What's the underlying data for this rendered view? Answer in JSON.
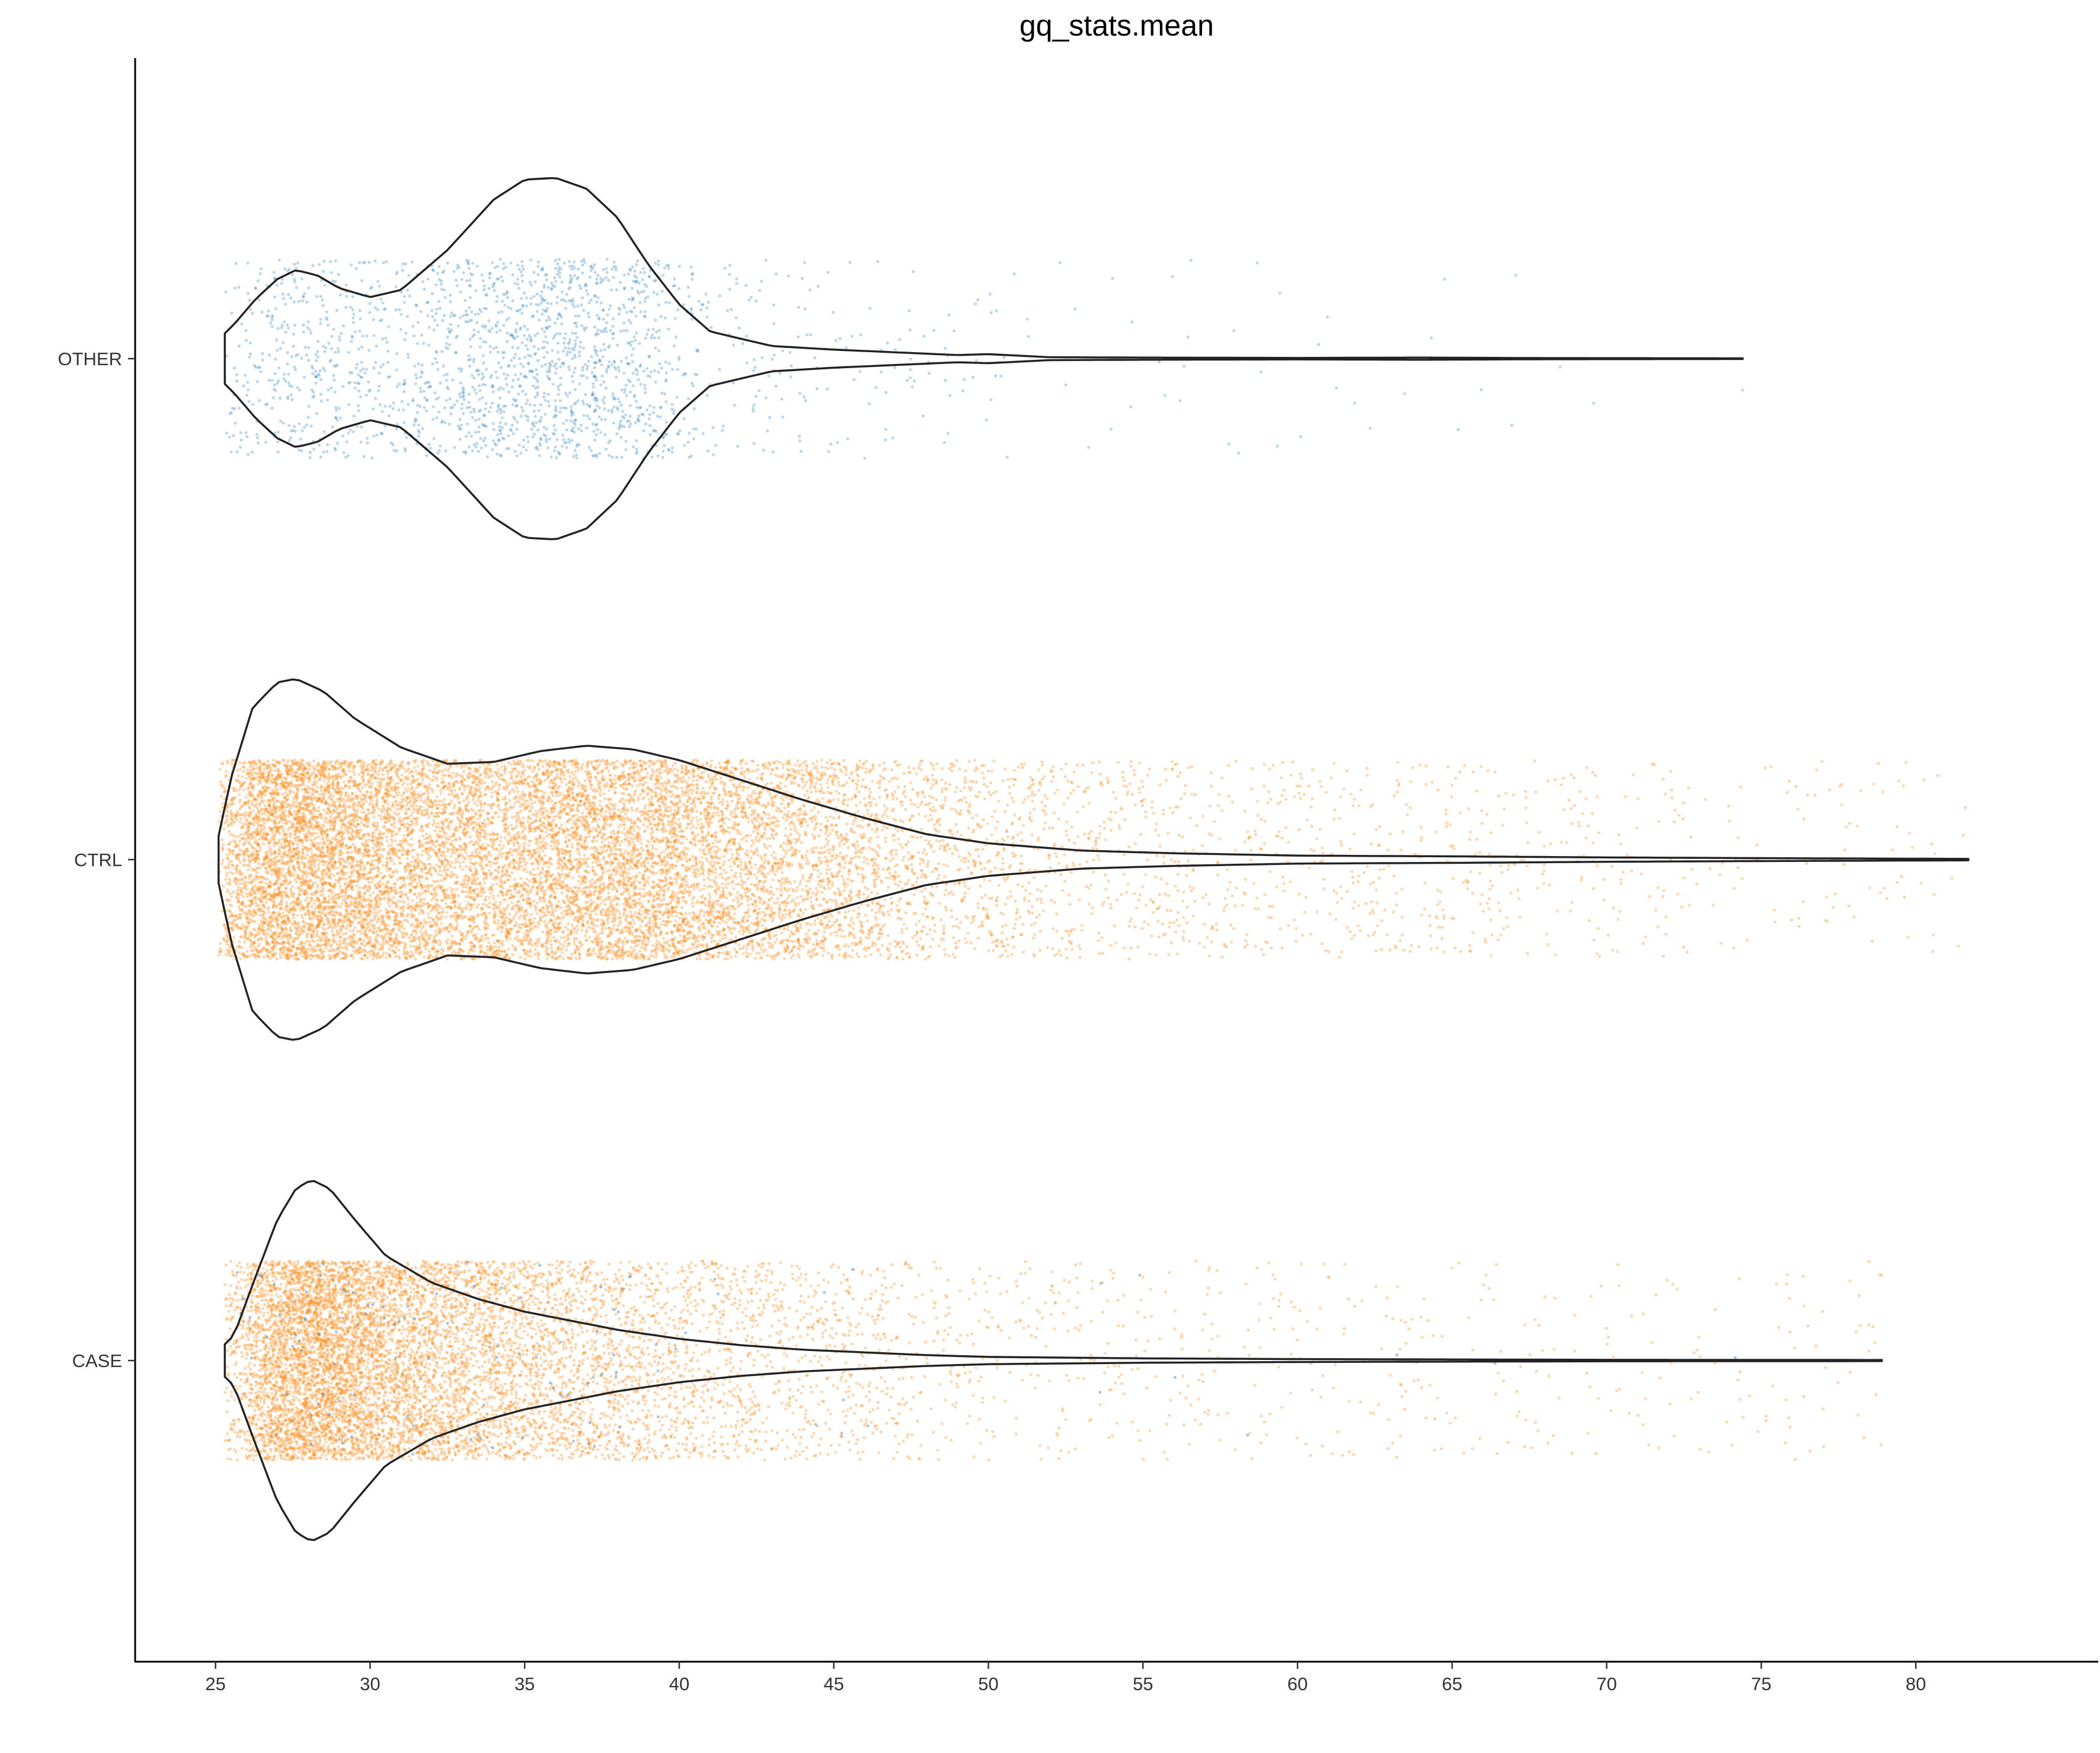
{
  "chart_data": {
    "type": "violin",
    "title": "gq_stats.mean",
    "xlabel": "",
    "ylabel": "",
    "xlim": [
      22.4,
      85.9
    ],
    "x_ticks": [
      25,
      30,
      35,
      40,
      45,
      50,
      55,
      60,
      65,
      70,
      75,
      80
    ],
    "categories": [
      "OTHER",
      "CTRL",
      "CASE"
    ],
    "grid": false,
    "legend": "none",
    "colors": {
      "blue": "#3b8bc9",
      "orange": "#ff8c1a",
      "outline": "#222222"
    },
    "series": [
      {
        "category": "OTHER",
        "min": 25.3,
        "max": 74.4,
        "points": 2000,
        "point_color": "blue",
        "density_profile": [
          [
            25.3,
            0.14
          ],
          [
            25.6,
            0.19
          ],
          [
            26.3,
            0.33
          ],
          [
            27.0,
            0.44
          ],
          [
            27.6,
            0.49
          ],
          [
            28.3,
            0.46
          ],
          [
            29.0,
            0.39
          ],
          [
            30.0,
            0.34
          ],
          [
            31.0,
            0.38
          ],
          [
            32.5,
            0.6
          ],
          [
            34.0,
            0.88
          ],
          [
            35.0,
            0.99
          ],
          [
            36.0,
            1.0
          ],
          [
            37.0,
            0.94
          ],
          [
            38.0,
            0.78
          ],
          [
            39.0,
            0.52
          ],
          [
            40.0,
            0.3
          ],
          [
            41.0,
            0.15
          ],
          [
            43.0,
            0.07
          ],
          [
            45.0,
            0.05
          ],
          [
            47.0,
            0.035
          ],
          [
            49.0,
            0.02
          ],
          [
            50.0,
            0.025
          ],
          [
            52.0,
            0.008
          ],
          [
            55.0,
            0.006
          ],
          [
            60.0,
            0.004
          ],
          [
            64.0,
            0.006
          ],
          [
            68.0,
            0.003
          ],
          [
            74.4,
            0.002
          ]
        ]
      },
      {
        "category": "CTRL",
        "min": 25.1,
        "max": 81.7,
        "points": 14000,
        "point_color": "orange",
        "density_profile": [
          [
            25.1,
            0.13
          ],
          [
            25.5,
            0.45
          ],
          [
            26.2,
            0.84
          ],
          [
            27.0,
            0.98
          ],
          [
            27.6,
            1.0
          ],
          [
            28.5,
            0.93
          ],
          [
            29.5,
            0.78
          ],
          [
            31.0,
            0.62
          ],
          [
            32.5,
            0.53
          ],
          [
            34.0,
            0.54
          ],
          [
            35.5,
            0.6
          ],
          [
            37.0,
            0.63
          ],
          [
            38.5,
            0.61
          ],
          [
            40.0,
            0.55
          ],
          [
            42.0,
            0.44
          ],
          [
            44.0,
            0.33
          ],
          [
            46.0,
            0.23
          ],
          [
            48.0,
            0.14
          ],
          [
            50.0,
            0.09
          ],
          [
            53.0,
            0.05
          ],
          [
            56.0,
            0.035
          ],
          [
            60.0,
            0.022
          ],
          [
            65.0,
            0.018
          ],
          [
            70.0,
            0.012
          ],
          [
            75.0,
            0.008
          ],
          [
            81.7,
            0.004
          ]
        ]
      },
      {
        "category": "CASE",
        "min": 25.3,
        "max": 78.9,
        "points": 9000,
        "point_color": "orange",
        "density_profile": [
          [
            25.3,
            0.09
          ],
          [
            25.6,
            0.14
          ],
          [
            26.2,
            0.42
          ],
          [
            27.0,
            0.78
          ],
          [
            27.6,
            0.95
          ],
          [
            28.1,
            1.0
          ],
          [
            28.7,
            0.95
          ],
          [
            29.5,
            0.78
          ],
          [
            30.5,
            0.58
          ],
          [
            32.0,
            0.43
          ],
          [
            33.5,
            0.34
          ],
          [
            35.0,
            0.27
          ],
          [
            36.5,
            0.22
          ],
          [
            38.0,
            0.17
          ],
          [
            40.0,
            0.12
          ],
          [
            42.0,
            0.085
          ],
          [
            44.0,
            0.06
          ],
          [
            46.0,
            0.045
          ],
          [
            48.0,
            0.03
          ],
          [
            50.0,
            0.02
          ],
          [
            55.0,
            0.012
          ],
          [
            60.0,
            0.008
          ],
          [
            65.0,
            0.006
          ],
          [
            70.0,
            0.004
          ],
          [
            78.9,
            0.003
          ]
        ]
      }
    ]
  }
}
